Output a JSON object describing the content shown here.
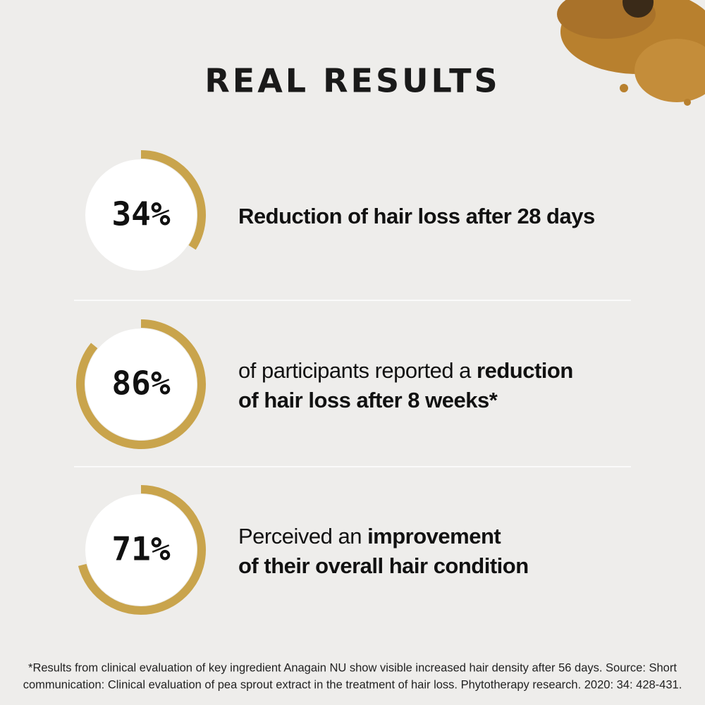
{
  "header": {
    "title": "REAL RESULTS"
  },
  "stats": [
    {
      "value": 34,
      "value_label": "34%",
      "lines": [
        [
          {
            "text": "Reduction of hair loss after 28 days",
            "bold": true
          }
        ]
      ]
    },
    {
      "value": 86,
      "value_label": "86%",
      "lines": [
        [
          {
            "text": "of participants reported a ",
            "bold": false
          },
          {
            "text": "reduction",
            "bold": true
          }
        ],
        [
          {
            "text": "of hair loss after 8 weeks*",
            "bold": true
          }
        ]
      ]
    },
    {
      "value": 71,
      "value_label": "71%",
      "lines": [
        [
          {
            "text": "Perceived an ",
            "bold": false
          },
          {
            "text": "improvement",
            "bold": true
          }
        ],
        [
          {
            "text": "of their overall hair condition",
            "bold": true
          }
        ]
      ]
    }
  ],
  "ring_color": "#c9a44c",
  "footnote": {
    "lines": [
      "*Results from clinical evaluation of key ingredient Anagain NU show visible increased hair density after 56 days. Source: Short",
      "communication: Clinical evaluation of pea sprout extract in the treatment of hair loss. Phytotherapy research. 2020: 34: 428-431."
    ]
  }
}
